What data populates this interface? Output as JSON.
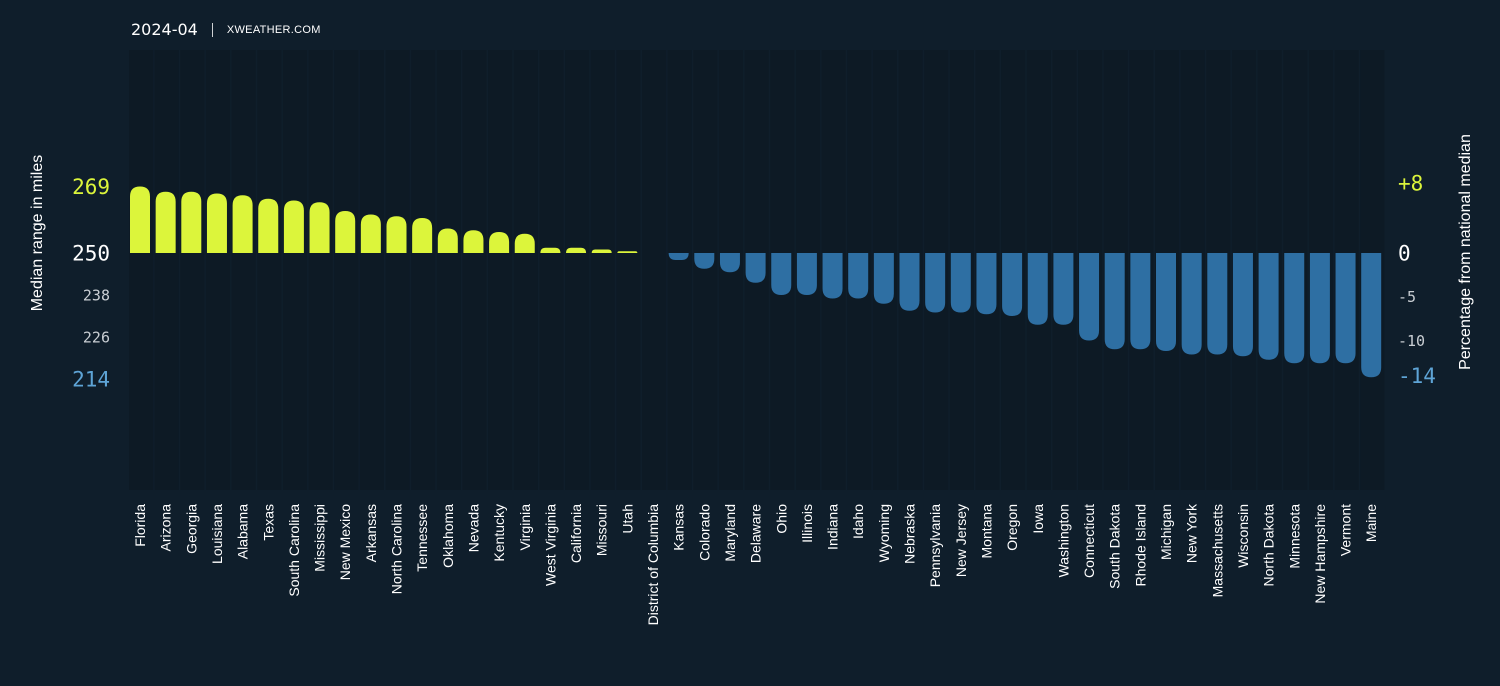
{
  "header": {
    "date": "2024-04",
    "source": "XWEATHER.COM"
  },
  "colors": {
    "background": "#0f1e2b",
    "column_band": "#0d1a25",
    "positive": "#dcf53b",
    "negative": "#2e6fa3",
    "negative_label": "#5ea4d6",
    "text": "#ffffff",
    "minor_tick": "#c9ced3"
  },
  "chart_data": {
    "type": "bar",
    "left_axis": {
      "label": "Median range in miles",
      "ticks": [
        {
          "value": 269,
          "label": "269",
          "style": "positive"
        },
        {
          "value": 250,
          "label": "250",
          "style": "base"
        },
        {
          "value": 238,
          "label": "238",
          "style": "minor"
        },
        {
          "value": 226,
          "label": "226",
          "style": "minor"
        },
        {
          "value": 214,
          "label": "214",
          "style": "negative"
        }
      ]
    },
    "right_axis": {
      "label": "Percentage from national median",
      "ticks": [
        {
          "value": 8,
          "label": "+8",
          "style": "positive"
        },
        {
          "value": 0,
          "label": "0",
          "style": "base"
        },
        {
          "value": -5,
          "label": "-5",
          "style": "minor"
        },
        {
          "value": -10,
          "label": "-10",
          "style": "minor"
        },
        {
          "value": -14,
          "label": "-14",
          "style": "negative"
        }
      ]
    },
    "baseline_miles": 250,
    "categories": [
      "Florida",
      "Arizona",
      "Georgia",
      "Louisiana",
      "Alabama",
      "Texas",
      "South Carolina",
      "Mississippi",
      "New Mexico",
      "Arkansas",
      "North Carolina",
      "Tennessee",
      "Oklahoma",
      "Nevada",
      "Kentucky",
      "Virginia",
      "West Virginia",
      "California",
      "Missouri",
      "Utah",
      "District of Columbia",
      "Kansas",
      "Colorado",
      "Maryland",
      "Delaware",
      "Ohio",
      "Illinois",
      "Indiana",
      "Idaho",
      "Wyoming",
      "Nebraska",
      "Pennsylvania",
      "New Jersey",
      "Montana",
      "Oregon",
      "Iowa",
      "Washington",
      "Connecticut",
      "South Dakota",
      "Rhode Island",
      "Michigan",
      "New York",
      "Massachusetts",
      "Wisconsin",
      "North Dakota",
      "Minnesota",
      "New Hampshire",
      "Vermont",
      "Maine"
    ],
    "values": [
      269,
      267.5,
      267.5,
      267,
      266.5,
      265.5,
      265,
      264.5,
      262,
      261,
      260.5,
      260,
      257,
      256.5,
      256,
      255.5,
      251.5,
      251.5,
      251,
      250.5,
      250,
      248,
      245.5,
      244.5,
      241.5,
      238,
      238,
      237,
      237,
      235.5,
      233.5,
      233,
      233,
      232.5,
      232,
      229.5,
      229.5,
      225,
      222.5,
      222.5,
      222,
      221,
      221,
      220.5,
      219.5,
      218.5,
      218.5,
      218.5,
      214.5
    ]
  }
}
